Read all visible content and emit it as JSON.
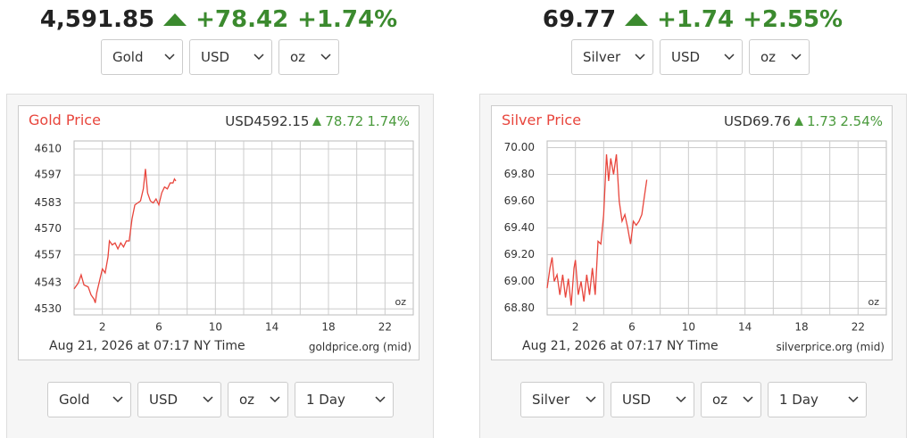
{
  "panels": [
    {
      "price": "4,591.85",
      "change": "+78.42",
      "change_pct": "+1.74%",
      "top_selects": [
        "Gold",
        "USD",
        "oz"
      ],
      "bottom_selects": [
        "Gold",
        "USD",
        "oz",
        "1 Day"
      ]
    },
    {
      "price": "69.77",
      "change": "+1.74",
      "change_pct": "+2.55%",
      "top_selects": [
        "Silver",
        "USD",
        "oz"
      ],
      "bottom_selects": [
        "Silver",
        "USD",
        "oz",
        "1 Day"
      ]
    }
  ],
  "chart_data": [
    {
      "type": "line",
      "title": "Gold Price",
      "quote": "USD4592.15",
      "change": "78.72",
      "change_pct": "1.74%",
      "unit": "oz",
      "footer": "Aug 21, 2026 at 07:17 NY Time",
      "source": "goldprice.org (mid)",
      "color": "#e8453c",
      "grid": true,
      "xlim": [
        0,
        24
      ],
      "xticks": [
        2,
        6,
        10,
        14,
        18,
        22
      ],
      "xgrid": [
        4,
        8,
        12,
        16,
        20
      ],
      "ylim": [
        4527,
        4614
      ],
      "yticks": [
        4530,
        4543,
        4557,
        4570,
        4583,
        4597,
        4610
      ],
      "x": [
        0,
        0.3,
        0.5,
        0.7,
        1,
        1.2,
        1.4,
        1.5,
        1.6,
        1.8,
        2,
        2.2,
        2.4,
        2.5,
        2.7,
        2.9,
        3.1,
        3.3,
        3.5,
        3.7,
        3.9,
        4.1,
        4.3,
        4.5,
        4.7,
        4.9,
        5.05,
        5.2,
        5.4,
        5.6,
        5.8,
        6,
        6.2,
        6.4,
        6.6,
        6.8,
        7,
        7.1,
        7.2
      ],
      "values": [
        4540,
        4543,
        4547,
        4542,
        4541,
        4537,
        4535,
        4533,
        4538,
        4544,
        4550,
        4548,
        4556,
        4564,
        4562,
        4563,
        4560,
        4563,
        4561,
        4564,
        4564,
        4575,
        4582,
        4583,
        4584,
        4590,
        4600,
        4588,
        4584,
        4583,
        4585,
        4582,
        4588,
        4591,
        4590,
        4593,
        4593,
        4595,
        4594
      ]
    },
    {
      "type": "line",
      "title": "Silver Price",
      "quote": "USD69.76",
      "change": "1.73",
      "change_pct": "2.54%",
      "unit": "oz",
      "footer": "Aug 21, 2026 at 07:17 NY Time",
      "source": "silverprice.org (mid)",
      "color": "#e8453c",
      "grid": true,
      "xlim": [
        0,
        24
      ],
      "xticks": [
        2,
        6,
        10,
        14,
        18,
        22
      ],
      "xgrid": [
        4,
        8,
        12,
        16,
        20
      ],
      "ylim": [
        68.75,
        70.05
      ],
      "yticks": [
        {
          "value": 68.8,
          "label": "68.80"
        },
        {
          "value": 69,
          "label": "69.00"
        },
        {
          "value": 69.2,
          "label": "69.20"
        },
        {
          "value": 69.4,
          "label": "69.40"
        },
        {
          "value": 69.6,
          "label": "69.60"
        },
        {
          "value": 69.8,
          "label": "69.80"
        },
        {
          "value": 70,
          "label": "70.00"
        }
      ],
      "x": [
        0,
        0.2,
        0.35,
        0.5,
        0.7,
        0.9,
        1.1,
        1.3,
        1.5,
        1.7,
        1.9,
        2,
        2.2,
        2.4,
        2.6,
        2.8,
        3,
        3.2,
        3.4,
        3.6,
        3.8,
        4,
        4.2,
        4.35,
        4.5,
        4.7,
        4.9,
        5.1,
        5.3,
        5.5,
        5.7,
        5.9,
        6.1,
        6.3,
        6.5,
        6.7,
        6.9,
        7.05
      ],
      "values": [
        68.95,
        69.1,
        69.18,
        69,
        69.05,
        68.9,
        69.05,
        68.88,
        69.02,
        68.82,
        69.1,
        69.16,
        68.9,
        69,
        68.85,
        69.05,
        68.9,
        69.1,
        68.9,
        69.3,
        69.28,
        69.5,
        69.95,
        69.75,
        69.92,
        69.8,
        69.95,
        69.6,
        69.45,
        69.5,
        69.4,
        69.28,
        69.45,
        69.42,
        69.45,
        69.5,
        69.65,
        69.76
      ]
    }
  ]
}
